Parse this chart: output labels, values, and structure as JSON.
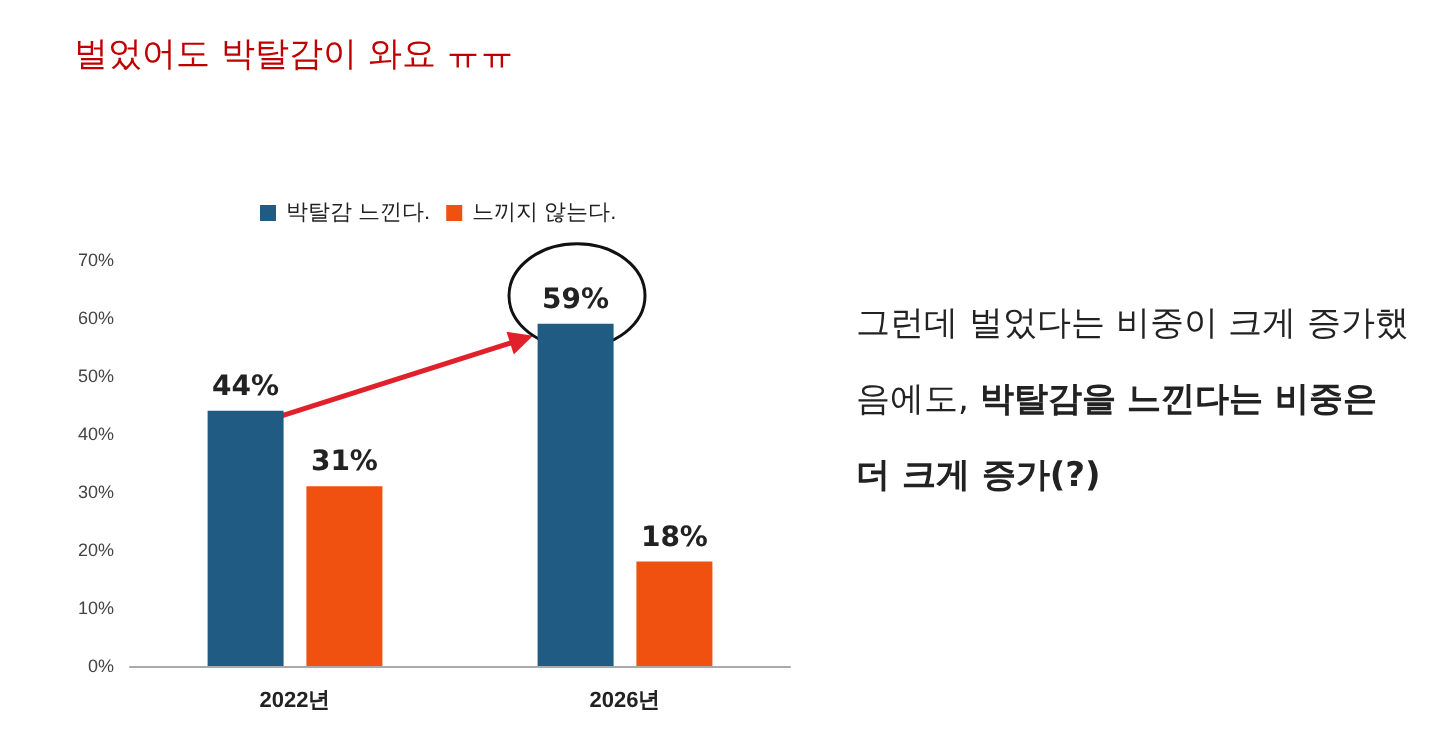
{
  "chart_data": {
    "type": "bar",
    "title": "벌었어도 박탈감이 와요 ㅠㅠ",
    "categories": [
      "2022년",
      "2026년"
    ],
    "series": [
      {
        "name": "박탈감 느낀다.",
        "color": "#1f5b82",
        "values": [
          44,
          59
        ],
        "value_labels": [
          "44%",
          "59%"
        ]
      },
      {
        "name": "느끼지 않는다.",
        "color": "#f05010",
        "values": [
          31,
          18
        ],
        "value_labels": [
          "31%",
          "18%"
        ]
      }
    ],
    "ylim": [
      0,
      70
    ],
    "yticks": [
      {
        "value": 0,
        "label": "0%"
      },
      {
        "value": 10,
        "label": "10%"
      },
      {
        "value": 20,
        "label": "20%"
      },
      {
        "value": 30,
        "label": "30%"
      },
      {
        "value": 40,
        "label": "40%"
      },
      {
        "value": 50,
        "label": "50%"
      },
      {
        "value": 60,
        "label": "60%"
      },
      {
        "value": 70,
        "label": "70%"
      }
    ],
    "grid": false,
    "legend": "top",
    "annotations": [
      "그런데 벌었다는 비중이 크게 증가했음에도,",
      "박탈감을 느낀다는 비중은 더 크게 증가(?)"
    ]
  }
}
